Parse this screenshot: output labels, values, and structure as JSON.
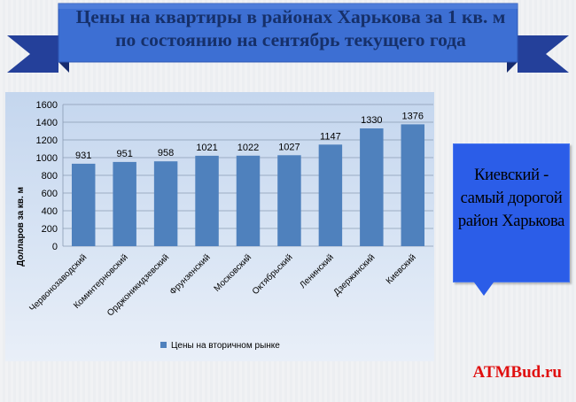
{
  "banner": {
    "line1": "Цены на квартиры в районах Харькова за 1 кв. м",
    "line2": "по состоянию на сентябрь текущего года"
  },
  "callout": {
    "line1": "Киевский -",
    "line2": "самый дорогой",
    "line3": "район Харькова"
  },
  "brand": {
    "text": "ATMBud.ru",
    "color": "#e01010"
  },
  "colors": {
    "bar": "#4f81bd",
    "ribbon_front": "#3d6fd3",
    "ribbon_back": "#24409a",
    "callout": "#2b5de8"
  },
  "chart_data": {
    "type": "bar",
    "categories": [
      "Червонозаводский",
      "Коминтерновский",
      "Орджоникидзевский",
      "Фрунзенский",
      "Московский",
      "Октябрьский",
      "Ленинский",
      "Дзержинский",
      "Киевский"
    ],
    "series": [
      {
        "name": "Цены на вторичном рынке",
        "values": [
          931,
          951,
          958,
          1021,
          1022,
          1027,
          1147,
          1330,
          1376
        ]
      }
    ],
    "ylabel": "Долларов за кв. м",
    "ylim": [
      0,
      1600
    ],
    "yticks": [
      0,
      200,
      400,
      600,
      800,
      1000,
      1200,
      1400,
      1600
    ],
    "grid": true,
    "legend": "bottom",
    "data_labels": true
  }
}
